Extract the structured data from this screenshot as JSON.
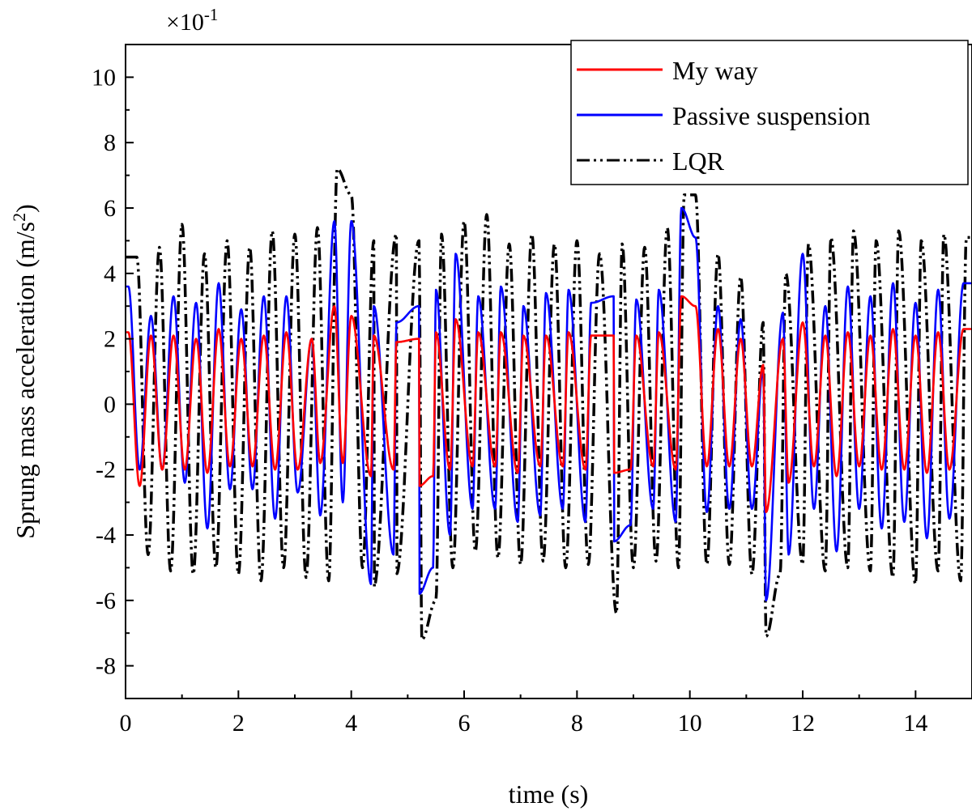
{
  "chart_data": {
    "type": "line",
    "title": "",
    "xlabel": "time (s)",
    "ylabel": "Sprung mass acceleration (m/s",
    "ylabel_superscript": "2",
    "ylabel_suffix": ")",
    "y_multiplier_base": "×10",
    "y_multiplier_exponent": "-1",
    "xlim": [
      0,
      15
    ],
    "ylim": [
      -9,
      11
    ],
    "x_ticks": [
      0,
      2,
      4,
      6,
      8,
      10,
      12,
      14
    ],
    "x_tick_labels": [
      "0",
      "2",
      "4",
      "6",
      "8",
      "10",
      "12",
      "14"
    ],
    "y_ticks": [
      -8,
      -6,
      -4,
      -2,
      0,
      2,
      4,
      6,
      8,
      10
    ],
    "y_tick_labels": [
      "-8",
      "-6",
      "-4",
      "-2",
      "0",
      "2",
      "4",
      "6",
      "8",
      "10"
    ],
    "legend_position": "top-right",
    "series": [
      {
        "name": "LQR",
        "color": "#000000",
        "style": "dash-dot-dot",
        "sampling": "step 0.05 s from 0 to 15",
        "dominant_frequency_hz": 2.45,
        "peak_times": [
          0.2,
          0.6,
          1.0,
          1.4,
          1.8,
          2.2,
          2.6,
          3.0,
          3.4,
          3.75,
          4.0,
          4.4,
          4.8,
          5.2,
          5.6,
          6.0,
          6.4,
          6.8,
          7.2,
          7.6,
          8.0,
          8.4,
          8.8,
          9.2,
          9.6,
          9.9,
          10.1,
          10.5,
          10.9,
          11.3,
          11.7,
          12.1,
          12.5,
          12.9,
          13.3,
          13.7,
          14.1,
          14.5,
          14.9
        ],
        "peak_values": [
          4.5,
          4.8,
          5.5,
          4.6,
          5.0,
          4.8,
          5.3,
          5.2,
          5.4,
          7.2,
          6.4,
          5.0,
          5.2,
          5.0,
          5.2,
          5.6,
          5.8,
          4.9,
          5.2,
          4.9,
          5.0,
          4.6,
          4.9,
          4.8,
          5.4,
          6.4,
          6.4,
          4.6,
          3.9,
          2.5,
          4.0,
          4.9,
          5.1,
          5.3,
          5.0,
          5.3,
          5.0,
          5.2,
          5.1
        ],
        "trough_times": [
          0.4,
          0.8,
          1.2,
          1.6,
          2.0,
          2.4,
          2.8,
          3.2,
          3.6,
          4.2,
          4.4,
          4.8,
          5.25,
          5.5,
          5.8,
          6.2,
          6.6,
          7.0,
          7.4,
          7.8,
          8.2,
          8.7,
          9.0,
          9.4,
          9.8,
          10.3,
          10.7,
          11.1,
          11.35,
          11.6,
          12.0,
          12.4,
          12.8,
          13.2,
          13.6,
          14.0,
          14.4,
          14.8
        ],
        "trough_values": [
          -4.6,
          -5.1,
          -5.2,
          -5.0,
          -5.2,
          -5.4,
          -5.0,
          -5.3,
          -5.4,
          -5.0,
          -5.6,
          -5.2,
          -7.2,
          -6.0,
          -5.0,
          -4.5,
          -4.7,
          -4.9,
          -4.8,
          -5.0,
          -4.9,
          -6.4,
          -5.0,
          -4.8,
          -5.0,
          -4.9,
          -4.9,
          -5.2,
          -7.1,
          -5.2,
          -4.9,
          -5.1,
          -5.0,
          -5.1,
          -5.3,
          -5.5,
          -5.1,
          -5.4
        ]
      },
      {
        "name": "Passive suspension",
        "color": "#0000ff",
        "style": "solid",
        "sampling": "step 0.02 s from 0 to 15",
        "dominant_frequency_hz": 2.45,
        "peak_times": [
          0.05,
          0.45,
          0.85,
          1.25,
          1.65,
          2.05,
          2.45,
          2.85,
          3.3,
          3.7,
          4.0,
          4.4,
          4.8,
          5.2,
          5.5,
          5.85,
          6.25,
          6.65,
          7.05,
          7.45,
          7.85,
          8.25,
          8.65,
          9.05,
          9.45,
          9.85,
          10.1,
          10.5,
          10.9,
          11.3,
          11.65,
          12.0,
          12.4,
          12.8,
          13.2,
          13.6,
          14.0,
          14.4,
          14.85
        ],
        "peak_values": [
          3.6,
          2.7,
          3.3,
          3.1,
          3.7,
          2.9,
          3.3,
          3.3,
          2.0,
          5.6,
          5.6,
          3.0,
          2.5,
          3.0,
          3.5,
          4.6,
          3.3,
          3.6,
          3.0,
          3.4,
          3.5,
          3.1,
          3.3,
          3.2,
          3.5,
          6.0,
          5.1,
          3.0,
          2.6,
          1.1,
          2.8,
          4.6,
          3.0,
          3.6,
          3.3,
          3.7,
          3.1,
          3.5,
          3.7
        ],
        "trough_times": [
          0.25,
          0.65,
          1.05,
          1.45,
          1.85,
          2.25,
          2.65,
          3.05,
          3.45,
          3.85,
          4.35,
          4.75,
          5.2,
          5.45,
          5.75,
          6.15,
          6.55,
          6.95,
          7.35,
          7.75,
          8.15,
          8.65,
          8.95,
          9.35,
          9.75,
          10.3,
          10.7,
          11.1,
          11.35,
          11.75,
          12.2,
          12.6,
          13.0,
          13.4,
          13.8,
          14.2,
          14.6
        ],
        "trough_values": [
          -2.0,
          -2.0,
          -2.4,
          -3.8,
          -2.6,
          -2.6,
          -3.5,
          -2.7,
          -3.4,
          -3.0,
          -5.5,
          -4.6,
          -5.8,
          -5.0,
          -4.0,
          -3.2,
          -3.2,
          -3.6,
          -3.4,
          -3.2,
          -3.6,
          -4.2,
          -3.7,
          -3.2,
          -3.6,
          -3.3,
          -3.2,
          -3.2,
          -6.0,
          -4.6,
          -3.2,
          -4.5,
          -3.2,
          -3.8,
          -3.6,
          -4.1,
          -3.5
        ]
      },
      {
        "name": "My way",
        "color": "#ff0000",
        "style": "solid",
        "sampling": "step 0.02 s from 0 to 15",
        "dominant_frequency_hz": 2.45,
        "peak_times": [
          0.05,
          0.45,
          0.85,
          1.25,
          1.65,
          2.05,
          2.45,
          2.85,
          3.3,
          3.7,
          4.0,
          4.4,
          4.8,
          5.2,
          5.5,
          5.85,
          6.25,
          6.65,
          7.05,
          7.45,
          7.85,
          8.25,
          8.65,
          9.05,
          9.45,
          9.85,
          10.1,
          10.5,
          10.9,
          11.3,
          11.65,
          12.0,
          12.4,
          12.8,
          13.2,
          13.6,
          14.0,
          14.4,
          14.85
        ],
        "peak_values": [
          2.2,
          2.1,
          2.1,
          2.0,
          2.3,
          2.0,
          2.1,
          2.2,
          2.0,
          3.0,
          2.7,
          2.1,
          1.9,
          2.0,
          2.2,
          2.6,
          2.2,
          2.2,
          2.1,
          2.1,
          2.2,
          2.1,
          2.1,
          2.1,
          2.2,
          3.3,
          3.0,
          2.3,
          2.0,
          1.2,
          2.0,
          2.5,
          2.1,
          2.2,
          2.1,
          2.3,
          2.1,
          2.2,
          2.3
        ],
        "trough_times": [
          0.25,
          0.65,
          1.05,
          1.45,
          1.85,
          2.25,
          2.65,
          3.05,
          3.45,
          3.85,
          4.35,
          4.75,
          5.2,
          5.45,
          5.75,
          6.15,
          6.55,
          6.95,
          7.35,
          7.75,
          8.15,
          8.65,
          8.95,
          9.35,
          9.75,
          10.3,
          10.7,
          11.1,
          11.35,
          11.75,
          12.2,
          12.6,
          13.0,
          13.4,
          13.8,
          14.2,
          14.6
        ],
        "trough_values": [
          -2.5,
          -2.0,
          -2.0,
          -2.1,
          -1.9,
          -1.9,
          -2.0,
          -2.0,
          -1.8,
          -1.8,
          -2.2,
          -2.0,
          -2.5,
          -2.2,
          -2.0,
          -1.9,
          -1.9,
          -2.1,
          -1.9,
          -1.9,
          -2.0,
          -2.1,
          -2.0,
          -1.9,
          -2.0,
          -1.9,
          -1.9,
          -1.9,
          -3.3,
          -2.4,
          -1.9,
          -2.2,
          -1.9,
          -2.0,
          -2.0,
          -2.1,
          -2.0
        ]
      }
    ]
  }
}
